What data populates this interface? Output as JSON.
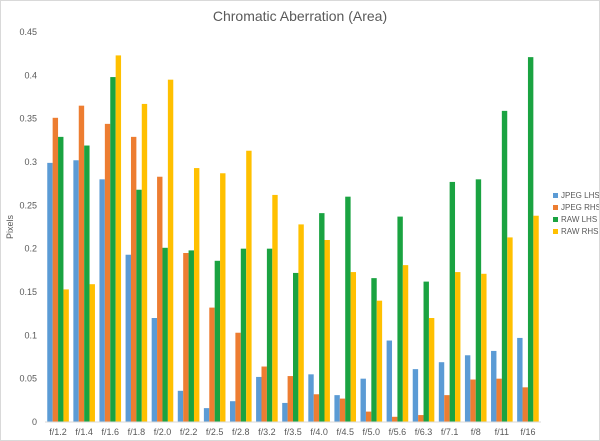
{
  "chart_data": {
    "type": "bar",
    "title": "Chromatic Aberration (Area)",
    "xlabel": "",
    "ylabel": "Pixels",
    "ylim": [
      0,
      0.45
    ],
    "yticks": [
      "0",
      "0.05",
      "0.1",
      "0.15",
      "0.2",
      "0.25",
      "0.3",
      "0.35",
      "0.4",
      "0.45"
    ],
    "grid": false,
    "legend_position": "right",
    "categories": [
      "f/1.2",
      "f/1.4",
      "f/1.6",
      "f/1.8",
      "f/2.0",
      "f/2.2",
      "f/2.5",
      "f/2.8",
      "f/3.2",
      "f/3.5",
      "f/4.0",
      "f/4.5",
      "f/5.0",
      "f/5.6",
      "f/6.3",
      "f/7.1",
      "f/8",
      "f/11",
      "f/16"
    ],
    "series": [
      {
        "name": "JPEG LHS",
        "color": "#5B9BD5",
        "values": [
          0.299,
          0.302,
          0.28,
          0.193,
          0.12,
          0.036,
          0.016,
          0.024,
          0.052,
          0.022,
          0.055,
          0.031,
          0.05,
          0.094,
          0.061,
          0.069,
          0.077,
          0.082,
          0.097
        ]
      },
      {
        "name": "JPEG RHS",
        "color": "#ED7D31",
        "values": [
          0.351,
          0.365,
          0.344,
          0.329,
          0.283,
          0.195,
          0.132,
          0.103,
          0.064,
          0.053,
          0.032,
          0.027,
          0.012,
          0.006,
          0.008,
          0.031,
          0.049,
          0.05,
          0.04
        ]
      },
      {
        "name": "RAW LHS",
        "color": "#1AA341",
        "values": [
          0.329,
          0.319,
          0.398,
          0.268,
          0.201,
          0.198,
          0.186,
          0.2,
          0.2,
          0.172,
          0.241,
          0.26,
          0.166,
          0.237,
          0.162,
          0.277,
          0.28,
          0.359,
          0.421
        ]
      },
      {
        "name": "RAW RHS",
        "color": "#FFC000",
        "values": [
          0.153,
          0.159,
          0.423,
          0.367,
          0.395,
          0.293,
          0.287,
          0.313,
          0.262,
          0.228,
          0.21,
          0.173,
          0.14,
          0.181,
          0.12,
          0.173,
          0.171,
          0.213,
          0.238
        ]
      }
    ]
  }
}
